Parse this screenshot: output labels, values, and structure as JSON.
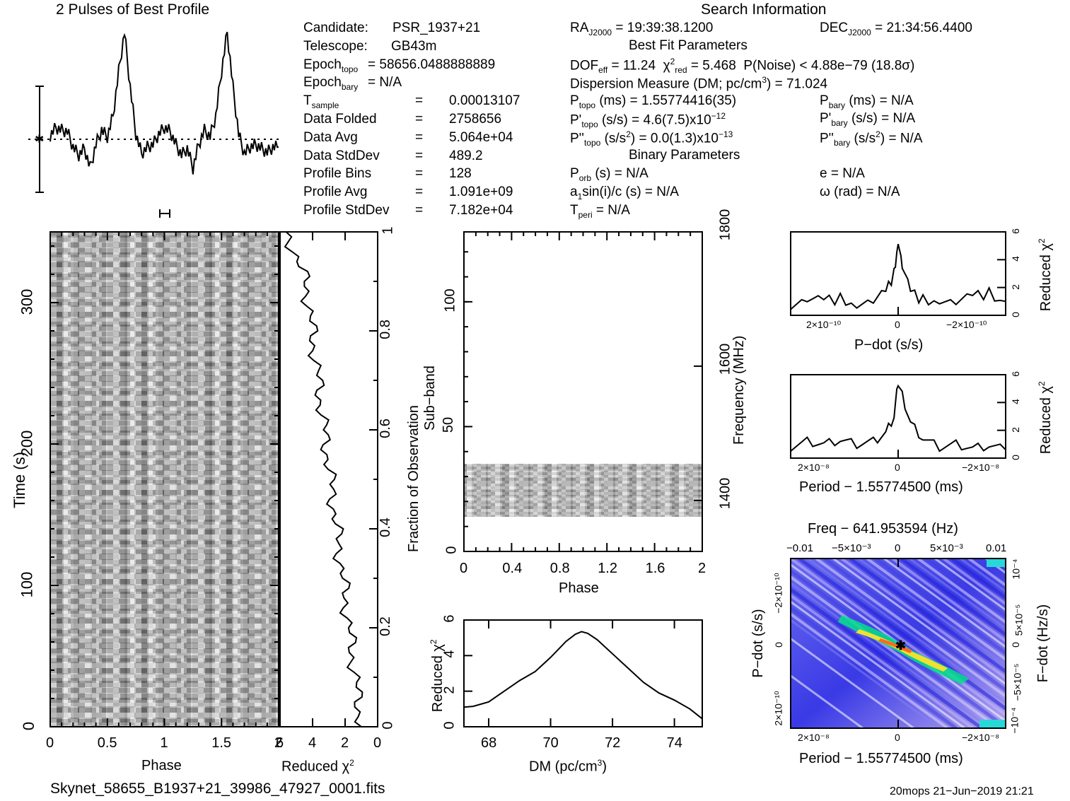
{
  "header": {
    "profile_title": "2 Pulses of Best Profile",
    "search_title": "Search Information"
  },
  "info_left": [
    {
      "k": "Candidate:",
      "v": "PSR_1937+21"
    },
    {
      "k": "Telescope:",
      "v": "GB43m"
    },
    {
      "k": "Epoch",
      "sub": "topo",
      "v": "= 58656.0488888889"
    },
    {
      "k": "Epoch",
      "sub": "bary",
      "v": "= N/A"
    },
    {
      "k": "T",
      "sub": "sample",
      "v": "=   0.00013107"
    },
    {
      "k": "Data Folded",
      "v": "=   2758656"
    },
    {
      "k": "Data Avg",
      "v": "=   5.064e+04"
    },
    {
      "k": "Data StdDev",
      "v": "=   489.2"
    },
    {
      "k": "Profile Bins",
      "v": "=   128"
    },
    {
      "k": "Profile Avg",
      "v": "=   1.091e+09"
    },
    {
      "k": "Profile StdDev",
      "v": "=   7.182e+04"
    }
  ],
  "info_mid": {
    "ra": "RA",
    "ra_sub": "J2000",
    "ra_val": "= 19:39:38.1200",
    "best_fit": "Best Fit Parameters",
    "dof_line": "DOF",
    "dof_sub": "eff",
    "dof_val": "= 11.24",
    "chi_val": "= 5.468",
    "pnoise": "P(Noise) < 4.88e−79  (18.8σ)",
    "dm_line": "Dispersion Measure (DM; pc/cm",
    "dm_val": ") = 71.024",
    "ptopo": "P",
    "ptopo_sub": "topo",
    "ptopo_val": "(ms) =  1.55774416(35)",
    "pdtopo_val": "(s/s) =  4.6(7.5)x10",
    "pdtopo_exp": "−12",
    "pddtopo_val": "(s/s",
    "pddtopo_val2": ") = 0.0(1.3)x10",
    "pddtopo_exp": "−13",
    "binary": "Binary Parameters",
    "porb": "(s) = N/A",
    "a1": "sin(i)/c (s) = N/A",
    "tperi": "= N/A"
  },
  "info_right": {
    "dec": "DEC",
    "dec_sub": "J2000",
    "dec_val": "= 21:34:56.4400",
    "pbary_val": "(ms) = N/A",
    "pdbary_val": "(s/s) = N/A",
    "pddbary_val": ") = N/A",
    "e_val": "e = N/A",
    "omega_val": "ω (rad) = N/A"
  },
  "footer": {
    "filename": "Skynet_58655_B1937+21_39986_47927_0001.fits",
    "stamp": "20mops 21−Jun−2019 21:21"
  },
  "labels": {
    "phase": "Phase",
    "time": "Time (s)",
    "redchi": "Reduced χ",
    "frac_obs": "Fraction of Observation",
    "subband": "Sub−band",
    "frequency": "Frequency (MHz)",
    "dm_axis": "DM (pc/cm",
    "pdot_axis": "P−dot (s/s)",
    "period_axis": "Period − 1.55774500 (ms)",
    "freq_title": "Freq − 641.953594 (Hz)",
    "fdot_axis": "F−dot (Hz/s)"
  },
  "chart_data": [
    {
      "type": "line",
      "title": "2 Pulses of Best Profile",
      "x": [
        0.0,
        0.05,
        0.1,
        0.15,
        0.2,
        0.25,
        0.3,
        0.35,
        0.4,
        0.45,
        0.5,
        0.55,
        0.6,
        0.65,
        0.7,
        0.75,
        0.8,
        0.85,
        0.9,
        0.95,
        1.0,
        1.05,
        1.1,
        1.15,
        1.2,
        1.25,
        1.3,
        1.35,
        1.4,
        1.45,
        1.5,
        1.55,
        1.6,
        1.65,
        1.7,
        1.75,
        1.8,
        1.85,
        1.9,
        1.95,
        2.0
      ],
      "y": [
        0.15,
        0.45,
        0.35,
        0.3,
        -0.3,
        -0.6,
        -0.35,
        -1.1,
        -0.2,
        0.35,
        0.1,
        0.9,
        2.6,
        4.1,
        2.0,
        0.2,
        -0.55,
        -0.3,
        -0.2,
        0.2,
        0.45,
        0.3,
        -0.2,
        -0.6,
        -0.35,
        -1.1,
        -0.2,
        0.35,
        0.1,
        0.9,
        2.6,
        4.1,
        2.0,
        0.2,
        -0.55,
        -0.3,
        -0.2,
        -0.35,
        -0.5,
        -0.3,
        -0.3
      ]
    },
    {
      "type": "line",
      "xlabel": "DM (pc/cm3)",
      "ylabel": "Reduced χ2",
      "x": [
        67.2,
        67.5,
        68.0,
        68.5,
        69.0,
        69.5,
        70.0,
        70.5,
        70.8,
        71.0,
        71.2,
        71.5,
        72.0,
        72.5,
        73.0,
        73.5,
        74.0,
        74.5,
        74.9
      ],
      "y": [
        1.1,
        1.15,
        1.4,
        2.0,
        2.6,
        3.1,
        3.9,
        4.8,
        5.2,
        5.35,
        5.25,
        4.9,
        4.1,
        3.3,
        2.5,
        1.9,
        1.5,
        1.0,
        0.45
      ],
      "xlim": [
        67.2,
        74.9
      ],
      "ylim": [
        0,
        6
      ]
    },
    {
      "type": "line",
      "xlabel": "P−dot (s/s)",
      "ylabel": "Reduced χ2",
      "x": [
        2.6e-10,
        2.2e-10,
        1.8e-10,
        1.4e-10,
        1e-10,
        6e-11,
        3e-11,
        1e-11,
        0,
        -1e-11,
        -3e-11,
        -6e-11,
        -1e-10,
        -1.4e-10,
        -1.8e-10,
        -2.2e-10,
        -2.6e-10
      ],
      "y": [
        0.8,
        1.1,
        1.0,
        1.2,
        0.9,
        1.0,
        1.6,
        3.0,
        5.5,
        3.5,
        1.6,
        1.1,
        1.2,
        0.9,
        1.3,
        1.6,
        1.0
      ],
      "ylim": [
        0,
        6
      ]
    },
    {
      "type": "line",
      "xlabel": "Period − 1.55774500 (ms)",
      "ylabel": "Reduced χ2",
      "x": [
        2.6e-08,
        2.2e-08,
        1.8e-08,
        1.4e-08,
        1e-08,
        6e-09,
        3e-09,
        1e-09,
        0,
        -1e-09,
        -3e-09,
        -6e-09,
        -1e-08,
        -1.4e-08,
        -1.8e-08,
        -2.2e-08,
        -2.6e-08
      ],
      "y": [
        0.8,
        1.2,
        1.0,
        1.3,
        1.0,
        1.2,
        1.8,
        3.0,
        5.5,
        4.5,
        2.5,
        1.4,
        0.8,
        1.0,
        0.7,
        0.9,
        0.6
      ],
      "ylim": [
        0,
        6
      ]
    }
  ]
}
